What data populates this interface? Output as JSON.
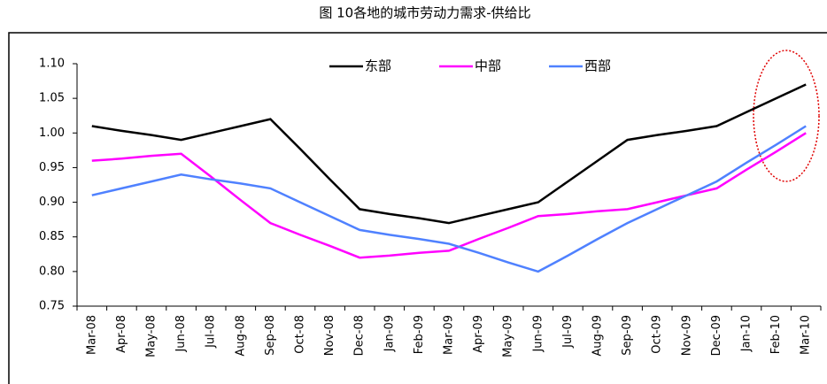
{
  "chart_data": {
    "type": "line",
    "title": "图 10各地的城市劳动力需求-供给比",
    "categories": [
      "Mar-08",
      "Apr-08",
      "May-08",
      "Jun-08",
      "Jul-08",
      "Aug-08",
      "Sep-08",
      "Oct-08",
      "Nov-08",
      "Dec-08",
      "Jan-09",
      "Feb-09",
      "Mar-09",
      "Apr-09",
      "May-09",
      "Jun-09",
      "Jul-09",
      "Aug-09",
      "Sep-09",
      "Oct-09",
      "Nov-09",
      "Dec-09",
      "Jan-10",
      "Feb-10",
      "Mar-10"
    ],
    "series": [
      {
        "name": "东部",
        "color": "#000000",
        "values": [
          1.01,
          1.003,
          0.997,
          0.99,
          1.0,
          1.01,
          1.02,
          0.977,
          0.933,
          0.89,
          0.883,
          0.877,
          0.87,
          0.88,
          0.89,
          0.9,
          0.93,
          0.96,
          0.99,
          0.997,
          1.003,
          1.01,
          1.03,
          1.05,
          1.07
        ]
      },
      {
        "name": "中部",
        "color": "#ff00ff",
        "values": [
          0.96,
          0.963,
          0.967,
          0.97,
          0.937,
          0.903,
          0.87,
          0.853,
          0.837,
          0.82,
          0.823,
          0.827,
          0.83,
          0.847,
          0.863,
          0.88,
          0.883,
          0.887,
          0.89,
          0.9,
          0.91,
          0.92,
          0.947,
          0.973,
          1.0
        ]
      },
      {
        "name": "西部",
        "color": "#4f81ff",
        "values": [
          0.91,
          0.92,
          0.93,
          0.94,
          0.933,
          0.927,
          0.92,
          0.9,
          0.88,
          0.86,
          0.853,
          0.847,
          0.84,
          0.827,
          0.813,
          0.8,
          0.823,
          0.847,
          0.87,
          0.89,
          0.91,
          0.93,
          0.957,
          0.983,
          1.01
        ]
      }
    ],
    "ylim": [
      0.75,
      1.1
    ],
    "yticks": [
      0.75,
      {
        "value": 0.8,
        "label": "0.80"
      },
      0.85,
      {
        "value": 0.9,
        "label": "0.90"
      },
      0.95,
      {
        "value": 1.0,
        "label": "1.00"
      },
      1.05,
      {
        "value": 1.1,
        "label": "1.10"
      }
    ],
    "legend": "top"
  }
}
